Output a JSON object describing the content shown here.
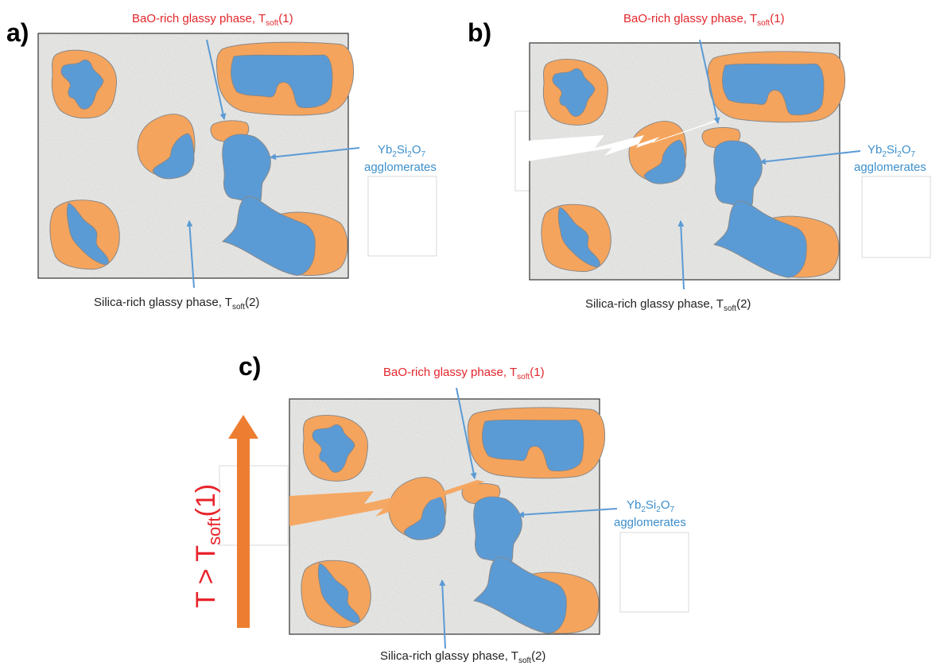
{
  "panels": [
    {
      "id": "a",
      "label": "a)"
    },
    {
      "id": "b",
      "label": "b)"
    },
    {
      "id": "c",
      "label": "c)"
    }
  ],
  "labels": {
    "bao_main": "BaO-rich glassy phase, T",
    "bao_sub": "soft",
    "bao_tail": "(1)",
    "silica_main": "Silica-rich glassy phase, T",
    "silica_sub": "soft",
    "silica_tail": "(2)",
    "yb_line1_a": "Yb",
    "yb_sub1": "2",
    "yb_line1_b": "Si",
    "yb_sub2": "2",
    "yb_line1_c": "O",
    "yb_sub3": "7",
    "yb_line2": "agglomerates"
  },
  "temperature": {
    "prefix": "T > T",
    "sub": "soft",
    "tail": "(1)"
  },
  "colors": {
    "bao_text": "#e3262b",
    "yb_text": "#3d8fcc",
    "orange_phase": "#f5a45d",
    "blue_phase": "#5b9bd5",
    "arrow": "#ed7d31",
    "matrix": "#e4e4e2"
  }
}
